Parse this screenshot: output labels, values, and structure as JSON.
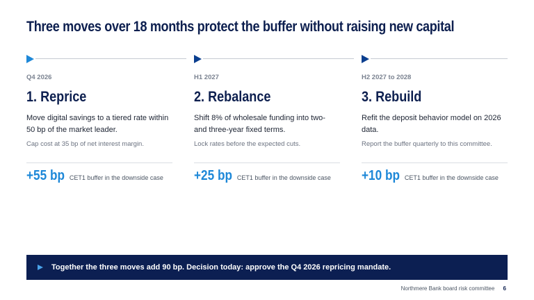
{
  "title": "Three moves over 18 months protect the buffer without raising new capital",
  "moves": [
    {
      "period": "Q4 2026",
      "heading": "1. Reprice",
      "body": "Move digital savings to a tiered rate within 50 bp of the market leader.",
      "note": "Cap cost at 35 bp of net interest margin.",
      "metric_value": "+55 bp",
      "metric_label": "CET1 buffer in the downside case"
    },
    {
      "period": "H1 2027",
      "heading": "2. Rebalance",
      "body": "Shift 8% of wholesale funding into two- and three-year fixed terms.",
      "note": "Lock rates before the expected cuts.",
      "metric_value": "+25 bp",
      "metric_label": "CET1 buffer in the downside case"
    },
    {
      "period": "H2 2027 to 2028",
      "heading": "3. Rebuild",
      "body": "Refit the deposit behavior model on 2026 data.",
      "note": "Report the buffer quarterly to this committee.",
      "metric_value": "+10 bp",
      "metric_label": "CET1 buffer in the downside case"
    }
  ],
  "banner": {
    "text": "Together the three moves add 90 bp. Decision today: approve the Q4 2026 repricing mandate."
  },
  "footer": {
    "source": "Northmere Bank board risk committee",
    "page": "6"
  },
  "colors": {
    "navy": "#0d1f4f",
    "accent": "#1e88d8",
    "banner": "#0c1f52"
  }
}
